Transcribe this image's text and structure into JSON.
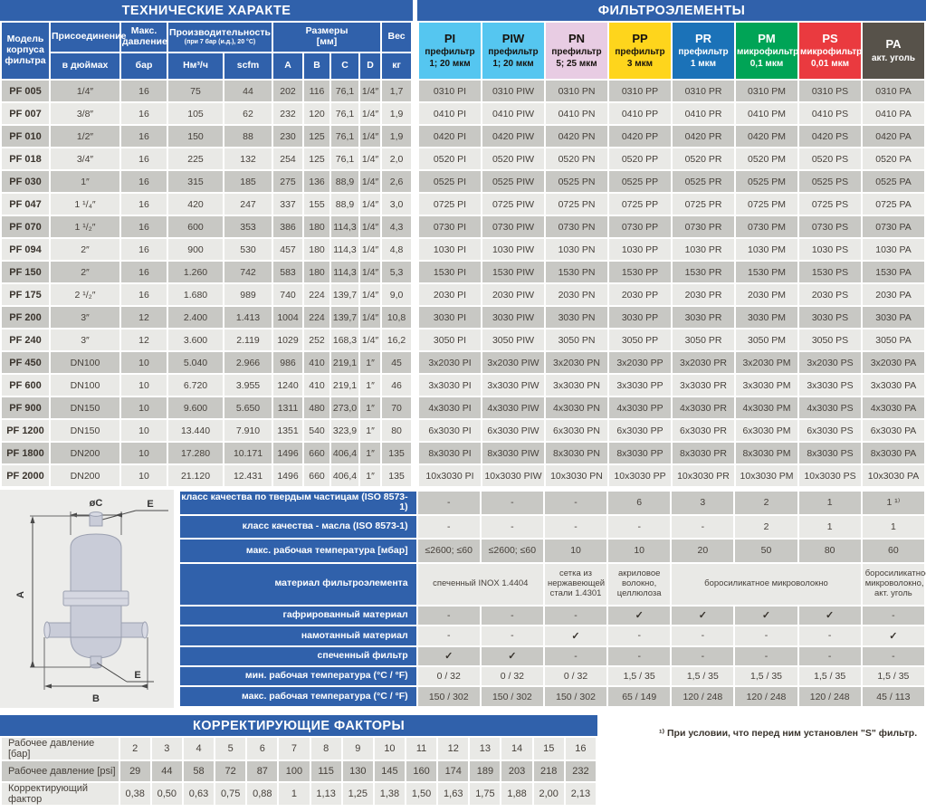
{
  "accent_blue": "#3061ab",
  "stripe_dark": "#c8c8c4",
  "stripe_light": "#e9e9e6",
  "left_table": {
    "title": "ТЕХНИЧЕСКИЕ ХАРАКТЕ",
    "headers": {
      "model": "Модель корпуса фильтра",
      "connection": "Присоединение",
      "connection_sub": "в дюймах",
      "pressure": "Макс. давление",
      "pressure_sub": "бар",
      "capacity": "Производительность",
      "capacity_note": "(при 7 бар (и.д.), 20 °C)",
      "capacity_sub1": "Нм³/ч",
      "capacity_sub2": "scfm",
      "dimensions": "Размеры",
      "dimensions_unit": "[мм]",
      "dim_cols": [
        "A",
        "B",
        "C",
        "D"
      ],
      "weight": "Вес",
      "weight_sub": "кг"
    }
  },
  "right_table": {
    "title": "ФИЛЬТРОЭЛЕМЕНТЫ",
    "columns": [
      {
        "code": "PI",
        "type": "префильтр",
        "micron": "1; 20 мкм",
        "bg": "#55c6f0",
        "fg": "#17130e"
      },
      {
        "code": "PIW",
        "type": "префильтр",
        "micron": "1; 20 мкм",
        "bg": "#55c6f0",
        "fg": "#17130e"
      },
      {
        "code": "PN",
        "type": "префильтр",
        "micron": "5; 25 мкм",
        "bg": "#e8cce3",
        "fg": "#17130e"
      },
      {
        "code": "PP",
        "type": "префильтр",
        "micron": "3 мкм",
        "bg": "#fed51c",
        "fg": "#17130e"
      },
      {
        "code": "PR",
        "type": "префильтр",
        "micron": "1 мкм",
        "bg": "#1b72b8",
        "fg": "#ffffff"
      },
      {
        "code": "PM",
        "type": "микрофильтр",
        "micron": "0,1 мкм",
        "bg": "#00a456",
        "fg": "#ffffff"
      },
      {
        "code": "PS",
        "type": "микрофильтр",
        "micron": "0,01 мкм",
        "bg": "#ea3a3f",
        "fg": "#ffffff"
      },
      {
        "code": "PA",
        "type": "акт. уголь",
        "micron": "",
        "bg": "#57524a",
        "fg": "#ffffff"
      }
    ]
  },
  "main_rows": [
    {
      "model": "PF 005",
      "conn": "1/4″",
      "bar": "16",
      "nm3h": "75",
      "scfm": "44",
      "a": "202",
      "b": "116",
      "c": "76,1",
      "d": "1/4″",
      "kg": "1,7",
      "element_code": "0310"
    },
    {
      "model": "PF 007",
      "conn": "3/8″",
      "bar": "16",
      "nm3h": "105",
      "scfm": "62",
      "a": "232",
      "b": "120",
      "c": "76,1",
      "d": "1/4″",
      "kg": "1,9",
      "element_code": "0410"
    },
    {
      "model": "PF 010",
      "conn": "1/2″",
      "bar": "16",
      "nm3h": "150",
      "scfm": "88",
      "a": "230",
      "b": "125",
      "c": "76,1",
      "d": "1/4″",
      "kg": "1,9",
      "element_code": "0420"
    },
    {
      "model": "PF 018",
      "conn": "3/4″",
      "bar": "16",
      "nm3h": "225",
      "scfm": "132",
      "a": "254",
      "b": "125",
      "c": "76,1",
      "d": "1/4″",
      "kg": "2,0",
      "element_code": "0520"
    },
    {
      "model": "PF 030",
      "conn": "1″",
      "bar": "16",
      "nm3h": "315",
      "scfm": "185",
      "a": "275",
      "b": "136",
      "c": "88,9",
      "d": "1/4″",
      "kg": "2,6",
      "element_code": "0525"
    },
    {
      "model": "PF 047",
      "conn": "1 ¹/₄″",
      "bar": "16",
      "nm3h": "420",
      "scfm": "247",
      "a": "337",
      "b": "155",
      "c": "88,9",
      "d": "1/4″",
      "kg": "3,0",
      "element_code": "0725"
    },
    {
      "model": "PF 070",
      "conn": "1 ¹/₂″",
      "bar": "16",
      "nm3h": "600",
      "scfm": "353",
      "a": "386",
      "b": "180",
      "c": "114,3",
      "d": "1/4″",
      "kg": "4,3",
      "element_code": "0730"
    },
    {
      "model": "PF 094",
      "conn": "2″",
      "bar": "16",
      "nm3h": "900",
      "scfm": "530",
      "a": "457",
      "b": "180",
      "c": "114,3",
      "d": "1/4″",
      "kg": "4,8",
      "element_code": "1030"
    },
    {
      "model": "PF 150",
      "conn": "2″",
      "bar": "16",
      "nm3h": "1.260",
      "scfm": "742",
      "a": "583",
      "b": "180",
      "c": "114,3",
      "d": "1/4″",
      "kg": "5,3",
      "element_code": "1530"
    },
    {
      "model": "PF 175",
      "conn": "2 ¹/₂″",
      "bar": "16",
      "nm3h": "1.680",
      "scfm": "989",
      "a": "740",
      "b": "224",
      "c": "139,7",
      "d": "1/4″",
      "kg": "9,0",
      "element_code": "2030"
    },
    {
      "model": "PF 200",
      "conn": "3″",
      "bar": "12",
      "nm3h": "2.400",
      "scfm": "1.413",
      "a": "1004",
      "b": "224",
      "c": "139,7",
      "d": "1/4″",
      "kg": "10,8",
      "element_code": "3030"
    },
    {
      "model": "PF 240",
      "conn": "3″",
      "bar": "12",
      "nm3h": "3.600",
      "scfm": "2.119",
      "a": "1029",
      "b": "252",
      "c": "168,3",
      "d": "1/4″",
      "kg": "16,2",
      "element_code": "3050"
    },
    {
      "model": "PF 450",
      "conn": "DN100",
      "bar": "10",
      "nm3h": "5.040",
      "scfm": "2.966",
      "a": "986",
      "b": "410",
      "c": "219,1",
      "d": "1″",
      "kg": "45",
      "element_code": "3x2030"
    },
    {
      "model": "PF 600",
      "conn": "DN100",
      "bar": "10",
      "nm3h": "6.720",
      "scfm": "3.955",
      "a": "1240",
      "b": "410",
      "c": "219,1",
      "d": "1″",
      "kg": "46",
      "element_code": "3x3030"
    },
    {
      "model": "PF 900",
      "conn": "DN150",
      "bar": "10",
      "nm3h": "9.600",
      "scfm": "5.650",
      "a": "1311",
      "b": "480",
      "c": "273,0",
      "d": "1″",
      "kg": "70",
      "element_code": "4x3030"
    },
    {
      "model": "PF 1200",
      "conn": "DN150",
      "bar": "10",
      "nm3h": "13.440",
      "scfm": "7.910",
      "a": "1351",
      "b": "540",
      "c": "323,9",
      "d": "1″",
      "kg": "80",
      "element_code": "6x3030"
    },
    {
      "model": "PF 1800",
      "conn": "DN200",
      "bar": "10",
      "nm3h": "17.280",
      "scfm": "10.171",
      "a": "1496",
      "b": "660",
      "c": "406,4",
      "d": "1″",
      "kg": "135",
      "element_code": "8x3030"
    },
    {
      "model": "PF 2000",
      "conn": "DN200",
      "bar": "10",
      "nm3h": "21.120",
      "scfm": "12.431",
      "a": "1496",
      "b": "660",
      "c": "406,4",
      "d": "1″",
      "kg": "135",
      "element_code": "10x3030"
    }
  ],
  "specs": {
    "rows": [
      {
        "label": "класс качества по твердым частицам (ISO 8573-1)",
        "cells": [
          "-",
          "-",
          "-",
          "6",
          "3",
          "2",
          "1",
          "1 ¹⁾"
        ]
      },
      {
        "label": "класс качества - масла (ISO 8573-1)",
        "cells": [
          "-",
          "-",
          "-",
          "-",
          "-",
          "2",
          "1",
          "1"
        ]
      },
      {
        "label": "макс. рабочая температура [мбар]",
        "cells": [
          "≤2600; ≤60",
          "≤2600; ≤60",
          "10",
          "10",
          "20",
          "50",
          "80",
          "60"
        ]
      },
      {
        "label": "материал фильтроэлемента",
        "tall": true,
        "cells": [
          {
            "t": "спеченный INOX 1.4404",
            "span": 2
          },
          {
            "t": "сетка из нержавеющей стали 1.4301",
            "span": 1
          },
          {
            "t": "акриловое волокно, целлюлоза",
            "span": 1
          },
          {
            "t": "боросиликатное микроволокно",
            "span": 3
          },
          {
            "t": "боросиликатное микроволокно, акт. уголь",
            "span": 1
          }
        ]
      },
      {
        "label": "гафрированный материал",
        "cells": [
          "-",
          "-",
          "-",
          "✓",
          "✓",
          "✓",
          "✓",
          "-"
        ]
      },
      {
        "label": "намотанный материал",
        "cells": [
          "-",
          "-",
          "✓",
          "-",
          "-",
          "-",
          "-",
          "✓"
        ]
      },
      {
        "label": "спеченный фильтр",
        "cells": [
          "✓",
          "✓",
          "-",
          "-",
          "-",
          "-",
          "-",
          "-"
        ]
      },
      {
        "label": "мин. рабочая температура (°C / °F)",
        "cells": [
          "0 / 32",
          "0 / 32",
          "0 / 32",
          "1,5 / 35",
          "1,5 / 35",
          "1,5 / 35",
          "1,5 / 35",
          "1,5 / 35"
        ]
      },
      {
        "label": "макс. рабочая температура  (°C / °F)",
        "cells": [
          "150 / 302",
          "150 / 302",
          "150 / 302",
          "65 / 149",
          "120 / 248",
          "120 / 248",
          "120 / 248",
          "45 / 113"
        ]
      }
    ]
  },
  "drawing": {
    "dim_c": "øC",
    "dim_e_top": "E",
    "dim_a": "A",
    "dim_b": "B",
    "dim_e_bottom": "E"
  },
  "correction": {
    "title": "КОРРЕКТИРУЮЩИЕ ФАКТОРЫ",
    "rows": [
      {
        "label": "Рабочее давление [бар]",
        "values": [
          "2",
          "3",
          "4",
          "5",
          "6",
          "7",
          "8",
          "9",
          "10",
          "11",
          "12",
          "13",
          "14",
          "15",
          "16"
        ]
      },
      {
        "label": "Рабочее давление [psi]",
        "values": [
          "29",
          "44",
          "58",
          "72",
          "87",
          "100",
          "115",
          "130",
          "145",
          "160",
          "174",
          "189",
          "203",
          "218",
          "232"
        ]
      },
      {
        "label": "Корректирующий фактор",
        "values": [
          "0,38",
          "0,50",
          "0,63",
          "0,75",
          "0,88",
          "1",
          "1,13",
          "1,25",
          "1,38",
          "1,50",
          "1,63",
          "1,75",
          "1,88",
          "2,00",
          "2,13"
        ]
      }
    ]
  },
  "footnote": "¹⁾ При условии, что перед ним установлен \"S\" фильтр."
}
